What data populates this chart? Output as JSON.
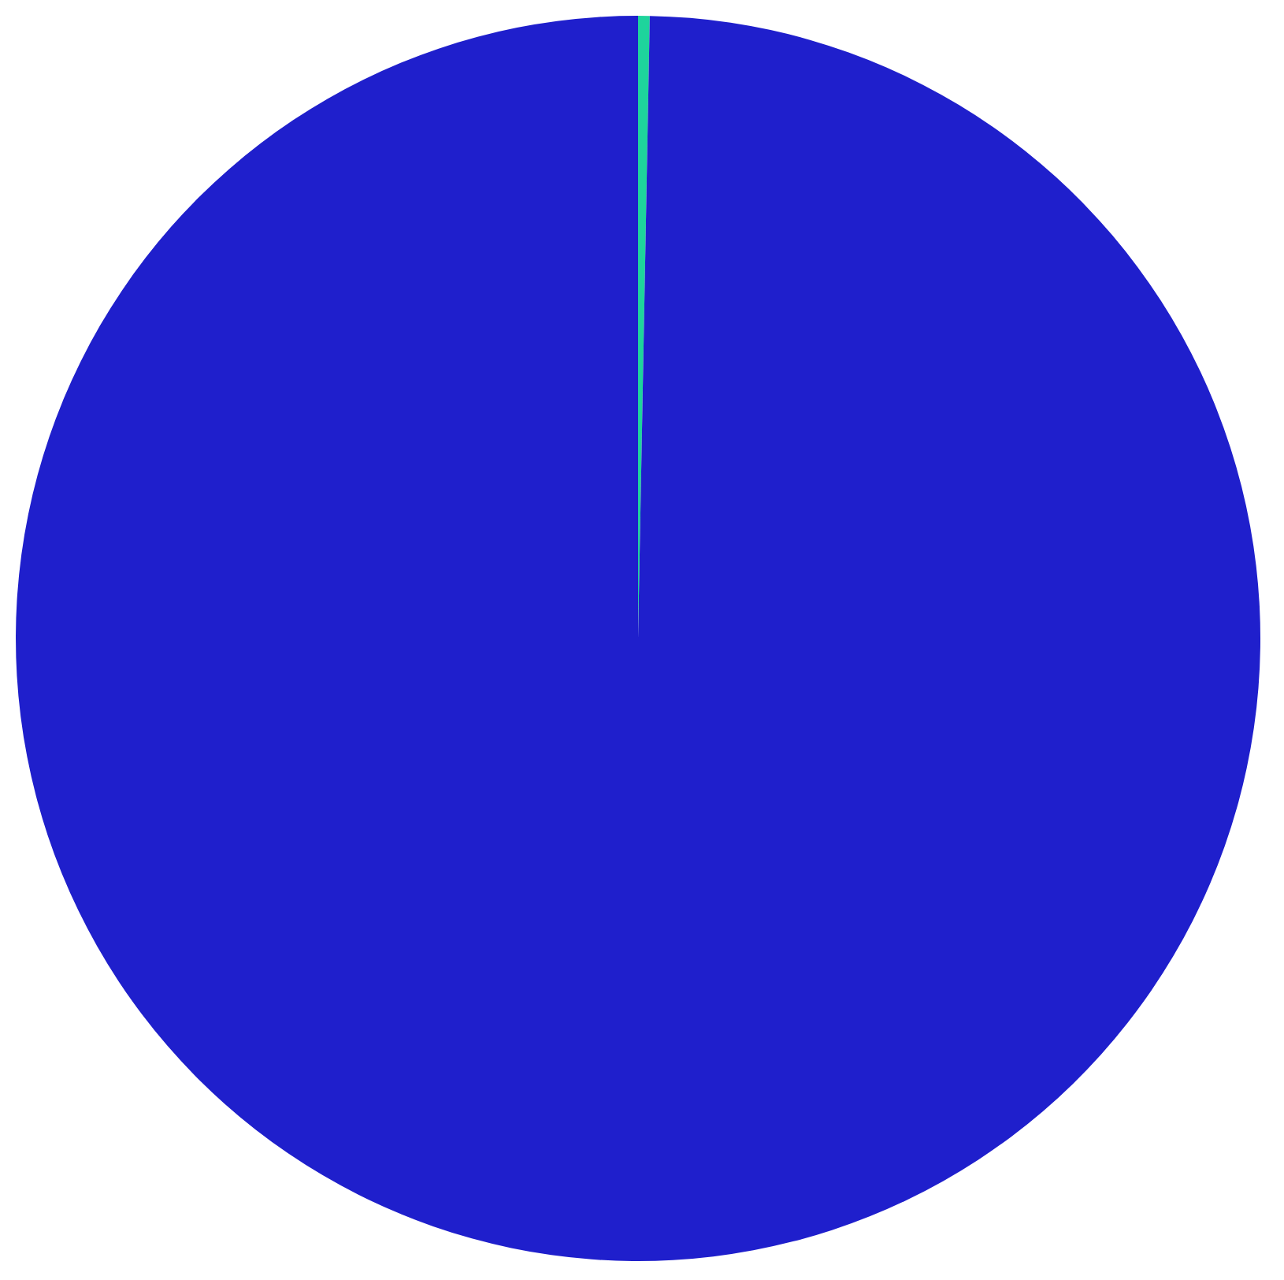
{
  "chart_data": {
    "type": "pie",
    "categories": [
      null,
      null
    ],
    "values": [
      0.3,
      99.7
    ],
    "colors": [
      "#1ed49c",
      "#1f1fcc"
    ],
    "legend": false
  }
}
